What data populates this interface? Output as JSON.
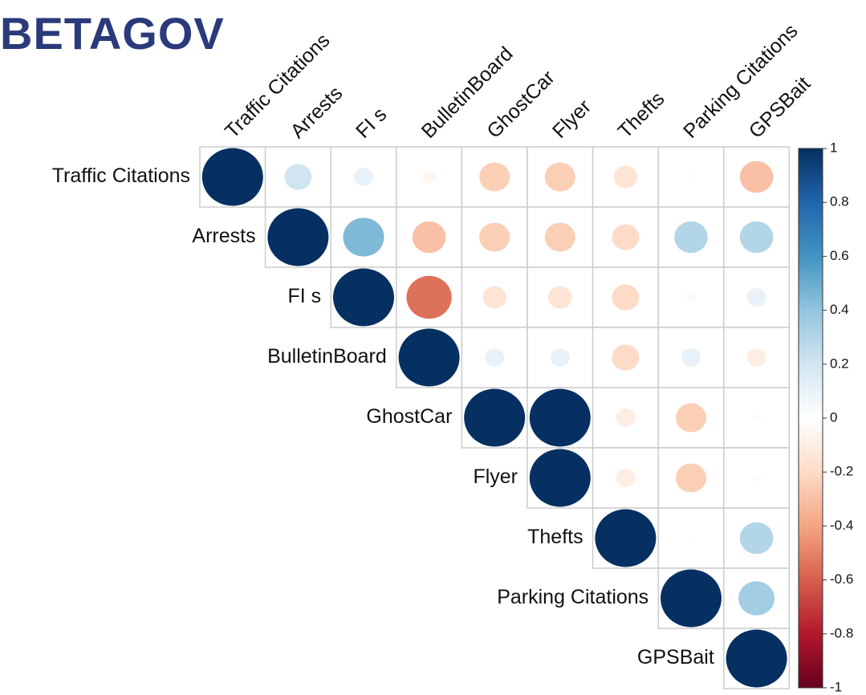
{
  "logo": "BETAGOV",
  "chart_data": {
    "type": "corrplot",
    "variables": [
      "Traffic Citations",
      "Arrests",
      "FI s",
      "BulletinBoard",
      "GhostCar",
      "Flyer",
      "Thefts",
      "Parking Citations",
      "GPSBait"
    ],
    "matrix": [
      [
        1,
        0.2,
        0.1,
        -0.05,
        -0.25,
        -0.25,
        -0.15,
        -0.01,
        -0.3
      ],
      [
        null,
        1,
        0.45,
        -0.3,
        -0.25,
        -0.25,
        -0.2,
        0.3,
        0.3
      ],
      [
        null,
        null,
        1,
        -0.55,
        -0.15,
        -0.15,
        -0.2,
        -0.03,
        0.1
      ],
      [
        null,
        null,
        null,
        1,
        0.1,
        0.1,
        -0.2,
        0.1,
        -0.1
      ],
      [
        null,
        null,
        null,
        null,
        1,
        1,
        -0.1,
        -0.25,
        0.02
      ],
      [
        null,
        null,
        null,
        null,
        null,
        1,
        -0.1,
        -0.25,
        0.02
      ],
      [
        null,
        null,
        null,
        null,
        null,
        null,
        1,
        -0.01,
        0.3
      ],
      [
        null,
        null,
        null,
        null,
        null,
        null,
        null,
        1,
        0.35
      ],
      [
        null,
        null,
        null,
        null,
        null,
        null,
        null,
        null,
        1
      ]
    ],
    "colorbar_lim": [
      -1,
      1
    ],
    "colorbar_ticks": [
      1,
      0.8,
      0.6,
      0.4,
      0.2,
      0,
      -0.2,
      -0.4,
      -0.6,
      -0.8,
      -1
    ],
    "colors": [
      "#053061",
      "#2166AC",
      "#4393C3",
      "#92C5DE",
      "#D1E5F0",
      "#FFFFFF",
      "#FDDBC7",
      "#F4A582",
      "#D6604D",
      "#B2182B",
      "#67001F"
    ]
  }
}
